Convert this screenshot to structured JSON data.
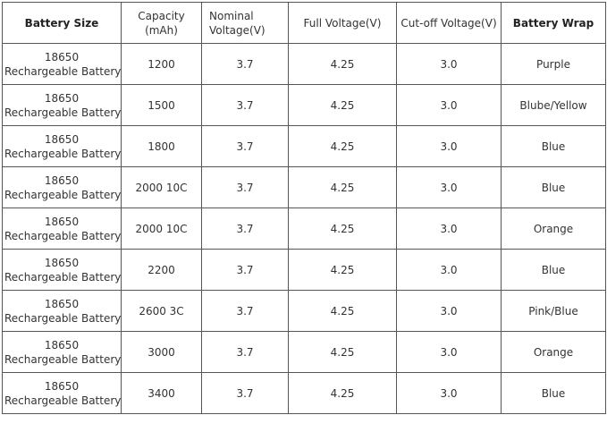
{
  "table": {
    "header": [
      [
        "Battery Size"
      ],
      [
        "Capacity",
        "(mAh)"
      ],
      [
        "Nominal",
        "Voltage(V)"
      ],
      [
        "Full Voltage(V)"
      ],
      [
        "Cut-off Voltage(V)"
      ],
      [
        "Battery Wrap"
      ]
    ],
    "rows": [
      [
        [
          "18650",
          "Rechargeable Battery"
        ],
        "1200",
        "3.7",
        "4.25",
        "3.0",
        "Purple"
      ],
      [
        [
          "18650",
          "Rechargeable Battery"
        ],
        "1500",
        "3.7",
        "4.25",
        "3.0",
        "Blube/Yellow"
      ],
      [
        [
          "18650",
          "Rechargeable Battery"
        ],
        "1800",
        "3.7",
        "4.25",
        "3.0",
        "Blue"
      ],
      [
        [
          "18650",
          "Rechargeable Battery"
        ],
        "2000 10C",
        "3.7",
        "4.25",
        "3.0",
        "Blue"
      ],
      [
        [
          "18650",
          "Rechargeable Battery"
        ],
        "2000 10C",
        "3.7",
        "4.25",
        "3.0",
        "Orange"
      ],
      [
        [
          "18650",
          "Rechargeable Battery"
        ],
        "2200",
        "3.7",
        "4.25",
        "3.0",
        "Blue"
      ],
      [
        [
          "18650",
          "Rechargeable Battery"
        ],
        "2600 3C",
        "3.7",
        "4.25",
        "3.0",
        "Pink/Blue"
      ],
      [
        [
          "18650",
          "Rechargeable Battery"
        ],
        "3000",
        "3.7",
        "4.25",
        "3.0",
        "Orange"
      ],
      [
        [
          "18650",
          "Rechargeable Battery"
        ],
        "3400",
        "3.7",
        "4.25",
        "3.0",
        "Blue"
      ]
    ]
  }
}
